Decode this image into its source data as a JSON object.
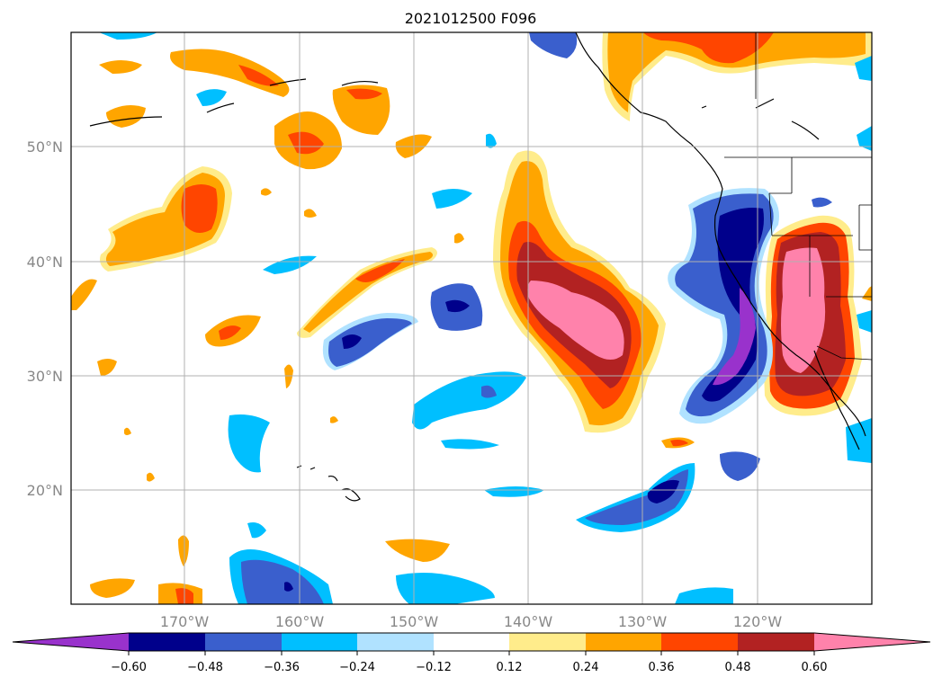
{
  "title": "2021012500 F096",
  "map": {
    "lat_labels": [
      "50°N",
      "40°N",
      "30°N",
      "20°N"
    ],
    "lon_labels": [
      "170°W",
      "160°W",
      "150°W",
      "140°W",
      "130°W",
      "120°W"
    ],
    "gridlines": true
  },
  "colorbar": {
    "orientation": "horizontal",
    "extend": "both",
    "colors": [
      "#9932cc",
      "#00008b",
      "#3a5fcd",
      "#00bfff",
      "#b0e2ff",
      "#ffffff",
      "#ffec8b",
      "#ffa500",
      "#ff4500",
      "#b22222",
      "#ff82ab"
    ],
    "tick_labels": [
      "−0.60",
      "−0.48",
      "−0.36",
      "−0.24",
      "−0.12",
      "0.12",
      "0.24",
      "0.36",
      "0.48",
      "0.60"
    ]
  },
  "colors": {
    "purple": "#9932cc",
    "navy": "#00008b",
    "blue": "#3a5fcd",
    "sky": "#00bfff",
    "lightsky": "#b0e2ff",
    "lightyellow": "#ffec8b",
    "orange": "#ffa500",
    "redorange": "#ff4500",
    "firebrick": "#b22222",
    "pink": "#ff82ab"
  }
}
